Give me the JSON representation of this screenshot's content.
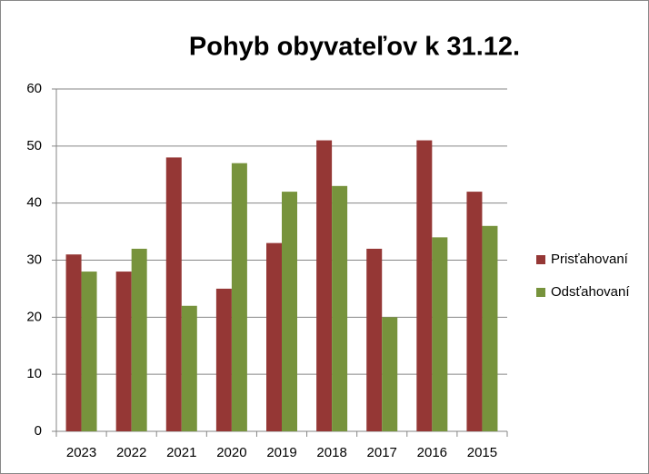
{
  "chart_data": {
    "type": "bar",
    "title": "Pohyb obyvateľov k 31.12.",
    "categories": [
      "2023",
      "2022",
      "2021",
      "2020",
      "2019",
      "2018",
      "2017",
      "2016",
      "2015"
    ],
    "series": [
      {
        "name": "Prisťahovaní",
        "color": "#953735",
        "values": [
          31,
          28,
          48,
          25,
          33,
          51,
          32,
          51,
          42
        ]
      },
      {
        "name": "Odsťahovaní",
        "color": "#77933c",
        "values": [
          28,
          32,
          22,
          47,
          42,
          43,
          20,
          34,
          36
        ]
      }
    ],
    "ylim": [
      0,
      60
    ],
    "yticks": [
      0,
      10,
      20,
      30,
      40,
      50,
      60
    ],
    "grid": true,
    "legend": "right"
  }
}
